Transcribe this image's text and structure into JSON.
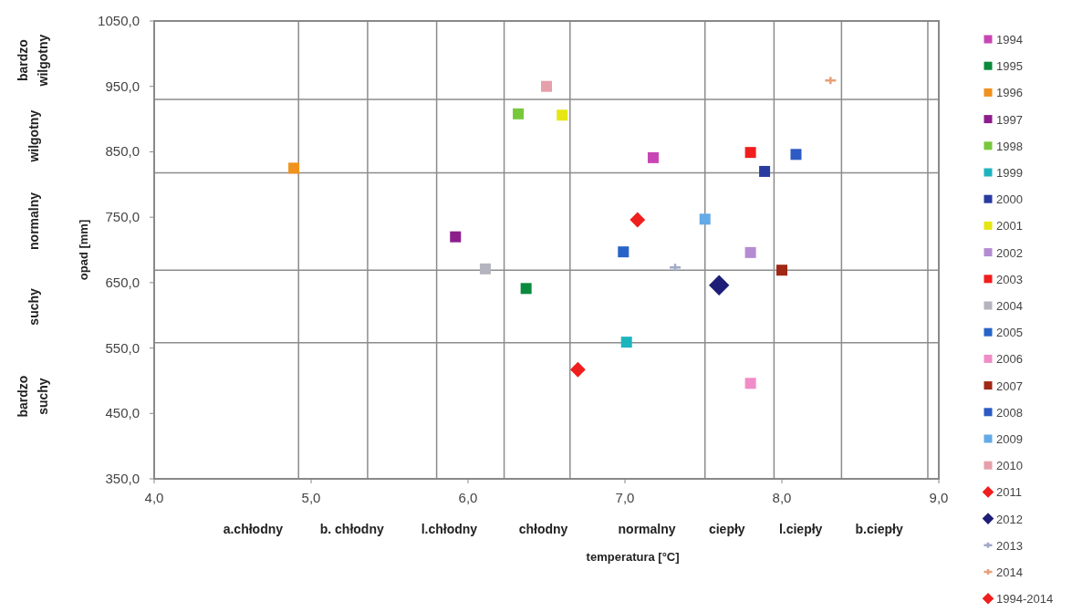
{
  "chart_data": {
    "type": "scatter",
    "xlabel": "temperatura [°C]",
    "ylabel": "opad [mm]",
    "xlim": [
      4,
      9
    ],
    "ylim": [
      350,
      1050
    ],
    "xticks": [
      {
        "value": 4,
        "label": "4,0"
      },
      {
        "value": 5,
        "label": "5,0"
      },
      {
        "value": 6,
        "label": "6,0"
      },
      {
        "value": 7,
        "label": "7,0"
      },
      {
        "value": 8,
        "label": "8,0"
      },
      {
        "value": 9,
        "label": "9,0"
      }
    ],
    "yticks": [
      {
        "value": 350,
        "label": "350,0"
      },
      {
        "value": 450,
        "label": "450,0"
      },
      {
        "value": 550,
        "label": "550,0"
      },
      {
        "value": 650,
        "label": "650,0"
      },
      {
        "value": 750,
        "label": "750,0"
      },
      {
        "value": 850,
        "label": "850,0"
      },
      {
        "value": 950,
        "label": "950,0"
      },
      {
        "value": 1050,
        "label": "1050,0"
      }
    ],
    "grid": false,
    "legend": "right",
    "marker": "square",
    "ref_lines": [
      {
        "axis": "x",
        "value": 4.92,
        "color": "#8c8c8c"
      },
      {
        "axis": "x",
        "value": 5.36,
        "color": "#8c8c8c"
      },
      {
        "axis": "x",
        "value": 5.8,
        "color": "#8c8c8c"
      },
      {
        "axis": "x",
        "value": 6.23,
        "color": "#8c8c8c"
      },
      {
        "axis": "x",
        "value": 6.65,
        "color": "#8c8c8c"
      },
      {
        "axis": "x",
        "value": 7.51,
        "color": "#8c8c8c"
      },
      {
        "axis": "x",
        "value": 7.95,
        "color": "#8c8c8c"
      },
      {
        "axis": "x",
        "value": 8.38,
        "color": "#8c8c8c"
      },
      {
        "axis": "x",
        "value": 8.93,
        "color": "#8c8c8c"
      },
      {
        "axis": "y",
        "value": 930,
        "color": "#8c8c8c"
      },
      {
        "axis": "y",
        "value": 818,
        "color": "#8c8c8c"
      },
      {
        "axis": "y",
        "value": 669,
        "color": "#8c8c8c"
      },
      {
        "axis": "y",
        "value": 558,
        "color": "#8c8c8c"
      }
    ],
    "annotations": [
      "bardzo wilgotny",
      "wilgotny",
      "normalny",
      "suchy",
      "bardzo suchy",
      "a.chłodny",
      "b. chłodny",
      "l.chłodny",
      "chłodny",
      "normalny",
      "ciepły",
      "l.ciepły",
      "b.ciepły"
    ],
    "series": [
      {
        "name": "1994",
        "color": "#c846b4",
        "x": [
          7.18
        ],
        "values": [
          841
        ]
      },
      {
        "name": "1995",
        "color": "#0a8a3c",
        "x": [
          6.37
        ],
        "values": [
          641
        ]
      },
      {
        "name": "1996",
        "color": "#f0921e",
        "x": [
          4.89
        ],
        "values": [
          825
        ]
      },
      {
        "name": "1997",
        "color": "#8c1e8c",
        "x": [
          5.92
        ],
        "values": [
          720
        ]
      },
      {
        "name": "1998",
        "color": "#78c83c",
        "x": [
          6.32
        ],
        "values": [
          908
        ]
      },
      {
        "name": "1999",
        "color": "#1eb4be",
        "x": [
          7.01
        ],
        "values": [
          559
        ]
      },
      {
        "name": "2000",
        "color": "#283ca0",
        "x": [
          7.89
        ],
        "values": [
          820
        ]
      },
      {
        "name": "2001",
        "color": "#e6e614",
        "x": [
          6.6
        ],
        "values": [
          906
        ]
      },
      {
        "name": "2002",
        "color": "#b48cd2",
        "x": [
          7.8
        ],
        "values": [
          696
        ]
      },
      {
        "name": "2003",
        "color": "#f01e1e",
        "x": [
          7.8
        ],
        "values": [
          849
        ]
      },
      {
        "name": "2004",
        "color": "#b4b4be",
        "x": [
          6.11
        ],
        "values": [
          671
        ]
      },
      {
        "name": "2005",
        "color": "#2864c8",
        "x": [
          6.99
        ],
        "values": [
          697
        ]
      },
      {
        "name": "2006",
        "color": "#f08cc8",
        "x": [
          7.8
        ],
        "values": [
          496
        ]
      },
      {
        "name": "2007",
        "color": "#a02814",
        "x": [
          8.0
        ],
        "values": [
          669
        ]
      },
      {
        "name": "2008",
        "color": "#2d5ac3",
        "x": [
          8.09
        ],
        "values": [
          846
        ]
      },
      {
        "name": "2009",
        "color": "#64aae6",
        "x": [
          7.51
        ],
        "values": [
          747
        ]
      },
      {
        "name": "2010",
        "color": "#e6a0aa",
        "x": [
          6.5
        ],
        "values": [
          950
        ]
      },
      {
        "name": "2011",
        "color": "#f01e1e",
        "marker": "diamond",
        "x": [
          6.7
        ],
        "values": [
          517
        ]
      },
      {
        "name": "2012",
        "color": "#1e1e78",
        "marker": "diamond",
        "x": [
          7.6
        ],
        "values": [
          646
        ]
      },
      {
        "name": "2013",
        "color": "#a0aac8",
        "marker": "cross",
        "x": [
          7.32
        ],
        "values": [
          673
        ]
      },
      {
        "name": "2014",
        "color": "#e6a078",
        "marker": "cross",
        "x": [
          8.31
        ],
        "values": [
          959
        ]
      },
      {
        "name": "1994-2014",
        "color": "#f01e1e",
        "marker": "diamond",
        "x": [
          7.08
        ],
        "values": [
          746
        ]
      }
    ]
  }
}
